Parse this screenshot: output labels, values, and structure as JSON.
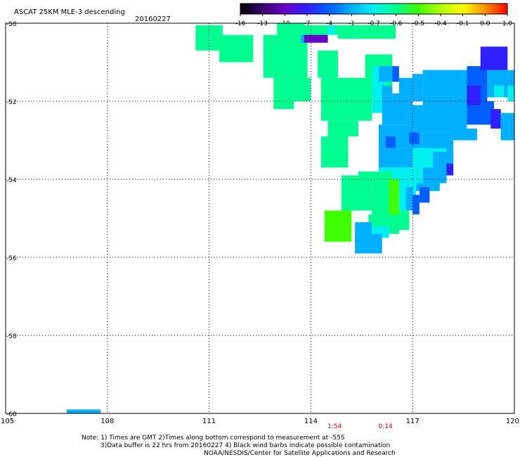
{
  "header": {
    "title": "ASCAT 25KM MLE-3 descending",
    "date": "20160227"
  },
  "colorbar": {
    "labels": [
      "-16",
      "-13",
      "-10",
      "-7",
      "-4",
      "-1",
      "-0.7",
      "-0.6",
      "-0.5",
      "-0.4",
      "-0.1",
      "0.0",
      "1.0"
    ],
    "colors": [
      "#000000",
      "#3a0070",
      "#6a00c8",
      "#3020ff",
      "#0060ff",
      "#00b0ff",
      "#00f0f0",
      "#00ff90",
      "#40ff00",
      "#b0ff00",
      "#ffff00",
      "#ff9000",
      "#ff0000"
    ]
  },
  "chart_data": {
    "type": "heatmap",
    "title": "ASCAT 25KM MLE-3 descending",
    "xlim": [
      105,
      120
    ],
    "ylim": [
      -60,
      -50
    ],
    "x_ticks": [
      "105",
      "108",
      "111",
      "114",
      "117",
      "120"
    ],
    "y_ticks": [
      "-50",
      "-52",
      "-54",
      "-56",
      "-58",
      "-60"
    ],
    "grid": true,
    "time_labels": [
      {
        "x": 114.7,
        "text": "1:54"
      },
      {
        "x": 116.2,
        "text": "0:14"
      }
    ],
    "cells": [
      {
        "x0": 110.6,
        "x1": 111.4,
        "y0": -50.7,
        "y1": -50.05,
        "v": -0.6
      },
      {
        "x0": 111.3,
        "x1": 112.3,
        "y0": -51.0,
        "y1": -50.3,
        "v": -0.6
      },
      {
        "x0": 112.6,
        "x1": 113.9,
        "y0": -51.4,
        "y1": -50.3,
        "v": -0.6
      },
      {
        "x0": 113.0,
        "x1": 113.8,
        "y0": -50.4,
        "y1": -50.0,
        "v": -0.6
      },
      {
        "x0": 112.9,
        "x1": 113.5,
        "y0": -52.2,
        "y1": -51.4,
        "v": -0.6
      },
      {
        "x0": 113.5,
        "x1": 114.0,
        "y0": -52.0,
        "y1": -51.4,
        "v": -0.6
      },
      {
        "x0": 114.2,
        "x1": 114.8,
        "y0": -51.4,
        "y1": -50.7,
        "v": -0.6
      },
      {
        "x0": 113.7,
        "x1": 114.8,
        "y0": -50.3,
        "y1": -50.05,
        "v": -0.6
      },
      {
        "x0": 113.8,
        "x1": 114.5,
        "y0": -50.5,
        "y1": -50.3,
        "v": -10
      },
      {
        "x0": 113.7,
        "x1": 113.8,
        "y0": -50.5,
        "y1": -50.3,
        "v": -1
      },
      {
        "x0": 114.5,
        "x1": 114.7,
        "y0": -50.3,
        "y1": -50.05,
        "v": -0.7
      },
      {
        "x0": 114.8,
        "x1": 116.5,
        "y0": -50.4,
        "y1": -50.05,
        "v": -0.6
      },
      {
        "x0": 114.3,
        "x1": 115.8,
        "y0": -52.5,
        "y1": -51.4,
        "v": -0.6
      },
      {
        "x0": 114.5,
        "x1": 115.4,
        "y0": -52.9,
        "y1": -52.5,
        "v": -0.6
      },
      {
        "x0": 114.3,
        "x1": 115.1,
        "y0": -53.7,
        "y1": -52.9,
        "v": -0.6
      },
      {
        "x0": 115.6,
        "x1": 116.4,
        "y0": -51.7,
        "y1": -50.8,
        "v": -0.6
      },
      {
        "x0": 115.6,
        "x1": 115.9,
        "y0": -51.9,
        "y1": -51.1,
        "v": -0.6
      },
      {
        "x0": 115.8,
        "x1": 116.2,
        "y0": -52.3,
        "y1": -51.1,
        "v": -0.7
      },
      {
        "x0": 116.0,
        "x1": 116.4,
        "y0": -51.5,
        "y1": -51.1,
        "v": -1
      },
      {
        "x0": 116.1,
        "x1": 116.4,
        "y0": -52.2,
        "y1": -51.6,
        "v": -1
      },
      {
        "x0": 116.4,
        "x1": 116.6,
        "y0": -51.5,
        "y1": -51.1,
        "v": -4
      },
      {
        "x0": 116.2,
        "x1": 117.0,
        "y0": -52.2,
        "y1": -51.8,
        "v": -1
      },
      {
        "x0": 116.6,
        "x1": 117.3,
        "y0": -52.0,
        "y1": -51.4,
        "v": -1
      },
      {
        "x0": 117.3,
        "x1": 118.6,
        "y0": -52.2,
        "y1": -51.2,
        "v": -1
      },
      {
        "x0": 117.0,
        "x1": 117.3,
        "y0": -51.5,
        "y1": -51.3,
        "v": -1
      },
      {
        "x0": 118.6,
        "x1": 119.2,
        "y0": -52.0,
        "y1": -51.1,
        "v": -4
      },
      {
        "x0": 119.0,
        "x1": 119.8,
        "y0": -51.2,
        "y1": -50.6,
        "v": -7
      },
      {
        "x0": 119.2,
        "x1": 120.0,
        "y0": -51.9,
        "y1": -51.2,
        "v": -1
      },
      {
        "x0": 119.4,
        "x1": 119.7,
        "y0": -51.9,
        "y1": -51.6,
        "v": -0.7
      },
      {
        "x0": 119.8,
        "x1": 120.0,
        "y0": -52.0,
        "y1": -51.6,
        "v": -0.7
      },
      {
        "x0": 116.1,
        "x1": 116.9,
        "y0": -52.6,
        "y1": -52.0,
        "v": -1
      },
      {
        "x0": 116.9,
        "x1": 118.6,
        "y0": -52.8,
        "y1": -52.1,
        "v": -1
      },
      {
        "x0": 118.6,
        "x1": 119.4,
        "y0": -52.6,
        "y1": -52.0,
        "v": -4
      },
      {
        "x0": 118.6,
        "x1": 119.0,
        "y0": -52.1,
        "y1": -51.6,
        "v": -7
      },
      {
        "x0": 119.3,
        "x1": 119.6,
        "y0": -52.7,
        "y1": -52.2,
        "v": -7
      },
      {
        "x0": 119.6,
        "x1": 120.0,
        "y0": -53.0,
        "y1": -52.3,
        "v": -1
      },
      {
        "x0": 116.0,
        "x1": 117.3,
        "y0": -53.2,
        "y1": -52.6,
        "v": -1
      },
      {
        "x0": 117.3,
        "x1": 118.2,
        "y0": -53.5,
        "y1": -52.8,
        "v": -1
      },
      {
        "x0": 118.2,
        "x1": 118.9,
        "y0": -53.0,
        "y1": -52.7,
        "v": -1
      },
      {
        "x0": 116.2,
        "x1": 116.5,
        "y0": -53.2,
        "y1": -52.9,
        "v": -4
      },
      {
        "x0": 116.9,
        "x1": 117.2,
        "y0": -53.1,
        "y1": -52.8,
        "v": -4
      },
      {
        "x0": 116.0,
        "x1": 117.0,
        "y0": -53.7,
        "y1": -53.2,
        "v": -1
      },
      {
        "x0": 117.0,
        "x1": 118.0,
        "y0": -53.7,
        "y1": -53.2,
        "v": -0.7
      },
      {
        "x0": 117.6,
        "x1": 118.2,
        "y0": -53.9,
        "y1": -53.3,
        "v": -1
      },
      {
        "x0": 118.0,
        "x1": 118.2,
        "y0": -53.9,
        "y1": -53.6,
        "v": -7
      },
      {
        "x0": 116.0,
        "x1": 117.3,
        "y0": -54.2,
        "y1": -53.7,
        "v": -0.7
      },
      {
        "x0": 117.3,
        "x1": 117.8,
        "y0": -54.1,
        "y1": -53.7,
        "v": -1
      },
      {
        "x0": 115.4,
        "x1": 116.4,
        "y0": -54.2,
        "y1": -53.8,
        "v": -0.6
      },
      {
        "x0": 117.4,
        "x1": 118.0,
        "y0": -54.1,
        "y1": -53.8,
        "v": -1
      },
      {
        "x0": 116.4,
        "x1": 117.1,
        "y0": -54.4,
        "y1": -54.1,
        "v": -0.7
      },
      {
        "x0": 117.1,
        "x1": 117.6,
        "y0": -54.3,
        "y1": -54.1,
        "v": -1
      },
      {
        "x0": 117.6,
        "x1": 117.8,
        "y0": -54.3,
        "y1": -54.1,
        "v": -1
      },
      {
        "x0": 114.9,
        "x1": 115.8,
        "y0": -54.8,
        "y1": -53.9,
        "v": -0.6
      },
      {
        "x0": 115.8,
        "x1": 116.3,
        "y0": -55.0,
        "y1": -54.0,
        "v": -0.6
      },
      {
        "x0": 116.3,
        "x1": 116.6,
        "y0": -55.0,
        "y1": -54.0,
        "v": -0.5
      },
      {
        "x0": 116.6,
        "x1": 116.8,
        "y0": -54.8,
        "y1": -54.1,
        "v": -0.7
      },
      {
        "x0": 116.8,
        "x1": 117.0,
        "y0": -54.8,
        "y1": -54.2,
        "v": -1
      },
      {
        "x0": 117.0,
        "x1": 117.2,
        "y0": -54.9,
        "y1": -54.4,
        "v": -4
      },
      {
        "x0": 117.2,
        "x1": 117.5,
        "y0": -54.6,
        "y1": -54.2,
        "v": -4
      },
      {
        "x0": 115.7,
        "x1": 116.9,
        "y0": -55.3,
        "y1": -54.9,
        "v": -0.6
      },
      {
        "x0": 116.6,
        "x1": 116.9,
        "y0": -55.0,
        "y1": -54.8,
        "v": -0.6
      },
      {
        "x0": 114.4,
        "x1": 115.2,
        "y0": -55.6,
        "y1": -54.8,
        "v": -0.5
      },
      {
        "x0": 115.3,
        "x1": 115.8,
        "y0": -55.5,
        "y1": -55.1,
        "v": -1
      },
      {
        "x0": 115.8,
        "x1": 116.3,
        "y0": -55.5,
        "y1": -55.2,
        "v": -0.7
      },
      {
        "x0": 116.3,
        "x1": 116.6,
        "y0": -55.4,
        "y1": -55.2,
        "v": -0.6
      },
      {
        "x0": 115.3,
        "x1": 116.1,
        "y0": -55.9,
        "y1": -55.4,
        "v": -1
      },
      {
        "x0": 106.8,
        "x1": 107.8,
        "y0": -60.0,
        "y1": -59.9,
        "v": -1
      }
    ]
  },
  "notes": {
    "line1": "Note: 1) Times are GMT 2)Times along bottom correspond to measurement at -55S",
    "line2": "3)Data buffer is 22 hrs from 20160227 4) Black wind barbs indicate possible contamination",
    "line3": "NOAA/NESDIS/Center for Satellite Applications and Research"
  }
}
